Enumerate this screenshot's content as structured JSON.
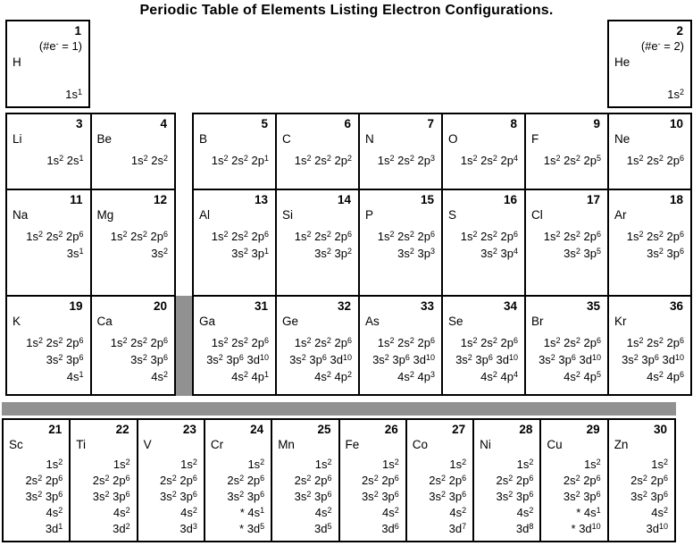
{
  "title": "Periodic Table of Elements Listing Electron Configurations.",
  "colors": {
    "bar": "#919191",
    "border": "#000000",
    "background": "#ffffff",
    "text": "#000000"
  },
  "hydrogen": {
    "number": "1",
    "note": "(#e- = 1)",
    "symbol": "H",
    "config": [
      "1s1"
    ]
  },
  "helium": {
    "number": "2",
    "note": "(#e- = 2)",
    "symbol": "He",
    "config": [
      "1s2"
    ]
  },
  "left_block": {
    "rows": [
      [
        {
          "number": "3",
          "symbol": "Li",
          "config": [
            "1s2 2s1"
          ]
        },
        {
          "number": "4",
          "symbol": "Be",
          "config": [
            "1s2 2s2"
          ]
        }
      ],
      [
        {
          "number": "11",
          "symbol": "Na",
          "config": [
            "1s2 2s2 2p6",
            "3s1"
          ]
        },
        {
          "number": "12",
          "symbol": "Mg",
          "config": [
            "1s2 2s2 2p6",
            "3s2"
          ]
        }
      ],
      [
        {
          "number": "19",
          "symbol": "K",
          "config": [
            "1s2 2s2 2p6",
            "3s2 3p6",
            "4s1"
          ]
        },
        {
          "number": "20",
          "symbol": "Ca",
          "config": [
            "1s2 2s2 2p6",
            "3s2 3p6",
            "4s2"
          ]
        }
      ]
    ]
  },
  "right_block": {
    "rows": [
      [
        {
          "number": "5",
          "symbol": "B",
          "config": [
            "1s2 2s2 2p1"
          ]
        },
        {
          "number": "6",
          "symbol": "C",
          "config": [
            "1s2 2s2 2p2"
          ]
        },
        {
          "number": "7",
          "symbol": "N",
          "config": [
            "1s2 2s2 2p3"
          ]
        },
        {
          "number": "8",
          "symbol": "O",
          "config": [
            "1s2 2s2 2p4"
          ]
        },
        {
          "number": "9",
          "symbol": "F",
          "config": [
            "1s2 2s2 2p5"
          ]
        },
        {
          "number": "10",
          "symbol": "Ne",
          "config": [
            "1s2 2s2 2p6"
          ]
        }
      ],
      [
        {
          "number": "13",
          "symbol": "Al",
          "config": [
            "1s2 2s2 2p6",
            "3s2 3p1"
          ]
        },
        {
          "number": "14",
          "symbol": "Si",
          "config": [
            "1s2 2s2 2p6",
            "3s2 3p2"
          ]
        },
        {
          "number": "15",
          "symbol": "P",
          "config": [
            "1s2 2s2 2p6",
            "3s2 3p3"
          ]
        },
        {
          "number": "16",
          "symbol": "S",
          "config": [
            "1s2 2s2 2p6",
            "3s2 3p4"
          ]
        },
        {
          "number": "17",
          "symbol": "Cl",
          "config": [
            "1s2 2s2 2p6",
            "3s2 3p5"
          ]
        },
        {
          "number": "18",
          "symbol": "Ar",
          "config": [
            "1s2 2s2 2p6",
            "3s2 3p6"
          ]
        }
      ],
      [
        {
          "number": "31",
          "symbol": "Ga",
          "config": [
            "1s2 2s2 2p6",
            "3s2 3p6 3d10",
            "4s2 4p1"
          ]
        },
        {
          "number": "32",
          "symbol": "Ge",
          "config": [
            "1s2 2s2 2p6",
            "3s2 3p6 3d10",
            "4s2 4p2"
          ]
        },
        {
          "number": "33",
          "symbol": "As",
          "config": [
            "1s2 2s2 2p6",
            "3s2 3p6 3d10",
            "4s2 4p3"
          ]
        },
        {
          "number": "34",
          "symbol": "Se",
          "config": [
            "1s2 2s2 2p6",
            "3s2 3p6 3d10",
            "4s2 4p4"
          ]
        },
        {
          "number": "35",
          "symbol": "Br",
          "config": [
            "1s2 2s2 2p6",
            "3s2 3p6 3d10",
            "4s2 4p5"
          ]
        },
        {
          "number": "36",
          "symbol": "Kr",
          "config": [
            "1s2 2s2 2p6",
            "3s2 3p6 3d10",
            "4s2 4p6"
          ]
        }
      ]
    ]
  },
  "transition_row": [
    {
      "number": "21",
      "symbol": "Sc",
      "config": [
        "1s2",
        "2s2 2p6",
        "3s2 3p6",
        "4s2",
        "3d1"
      ]
    },
    {
      "number": "22",
      "symbol": "Ti",
      "config": [
        "1s2",
        "2s2 2p6",
        "3s2 3p6",
        "4s2",
        "3d2"
      ]
    },
    {
      "number": "23",
      "symbol": "V",
      "config": [
        "1s2",
        "2s2 2p6",
        "3s2 3p6",
        "4s2",
        "3d3"
      ]
    },
    {
      "number": "24",
      "symbol": "Cr",
      "config": [
        "1s2",
        "2s2 2p6",
        "3s2 3p6",
        "* 4s1",
        "* 3d5"
      ]
    },
    {
      "number": "25",
      "symbol": "Mn",
      "config": [
        "1s2",
        "2s2 2p6",
        "3s2 3p6",
        "4s2",
        "3d5"
      ]
    },
    {
      "number": "26",
      "symbol": "Fe",
      "config": [
        "1s2",
        "2s2 2p6",
        "3s2 3p6",
        "4s2",
        "3d6"
      ]
    },
    {
      "number": "27",
      "symbol": "Co",
      "config": [
        "1s2",
        "2s2 2p6",
        "3s2 3p6",
        "4s2",
        "3d7"
      ]
    },
    {
      "number": "28",
      "symbol": "Ni",
      "config": [
        "1s2",
        "2s2 2p6",
        "3s2 3p6",
        "4s2",
        "3d8"
      ]
    },
    {
      "number": "29",
      "symbol": "Cu",
      "config": [
        "1s2",
        "2s2 2p6",
        "3s2 3p6",
        "* 4s1",
        "* 3d10"
      ]
    },
    {
      "number": "30",
      "symbol": "Zn",
      "config": [
        "1s2",
        "2s2 2p6",
        "3s2 3p6",
        "4s2",
        "3d10"
      ]
    }
  ]
}
